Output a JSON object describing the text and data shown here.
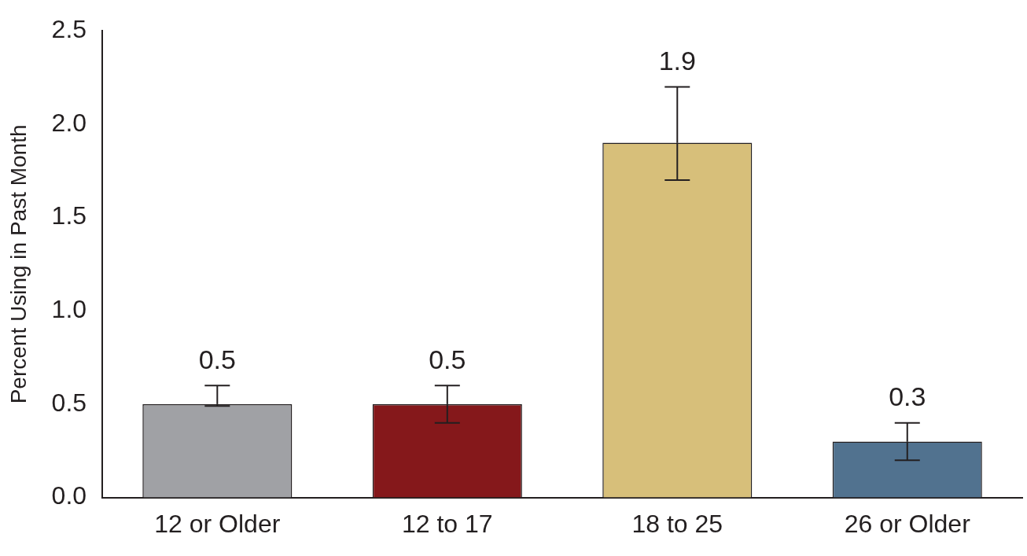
{
  "chart_data": {
    "type": "bar",
    "ylabel": "Percent Using in Past Month",
    "categories": [
      "12 or Older",
      "12 to 17",
      "18 to 25",
      "26 or Older"
    ],
    "values": [
      0.5,
      0.5,
      1.9,
      0.3
    ],
    "colors": [
      "#a0a1a5",
      "#85181b",
      "#d7bf7a",
      "#51728f"
    ],
    "errors": [
      [
        0.49,
        0.6
      ],
      [
        0.4,
        0.6
      ],
      [
        1.7,
        2.2
      ],
      [
        0.2,
        0.4
      ]
    ],
    "data_labels": true,
    "ylim": [
      0,
      2.5
    ],
    "yticks": [
      {
        "value": 0,
        "label": "0.0"
      },
      {
        "value": 0.5,
        "label": "0.5"
      },
      {
        "value": 1,
        "label": "1.0"
      },
      {
        "value": 1.5,
        "label": "1.5"
      },
      {
        "value": 2,
        "label": "2.0"
      },
      {
        "value": 2.5,
        "label": "2.5"
      }
    ],
    "grid": false,
    "legend": false
  }
}
